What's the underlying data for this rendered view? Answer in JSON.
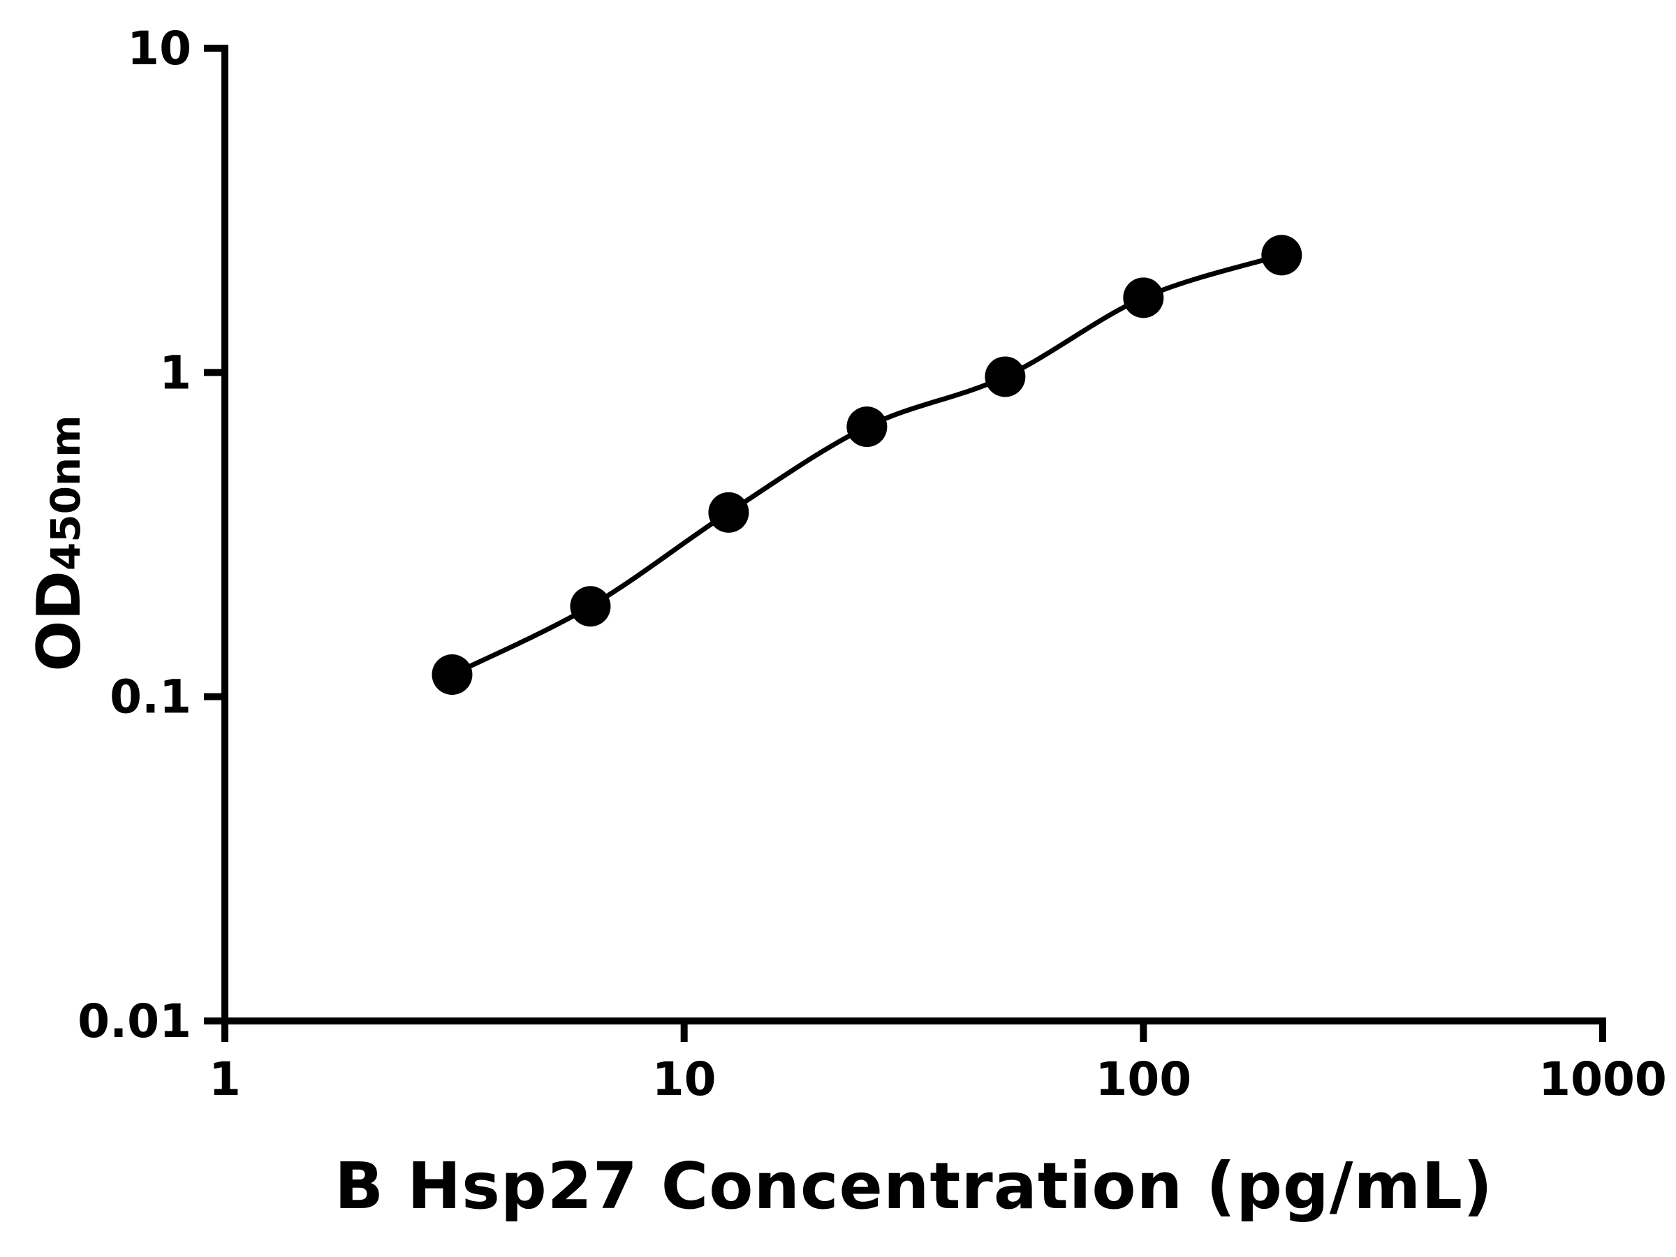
{
  "chart_data": {
    "type": "scatter",
    "title": "",
    "xlabel": "B Hsp27 Concentration (pg/mL)",
    "ylabel_main": "OD",
    "ylabel_sub": "450nm",
    "x": [
      3.125,
      6.25,
      12.5,
      25,
      50,
      100,
      200
    ],
    "y": [
      0.117,
      0.19,
      0.37,
      0.68,
      0.97,
      1.7,
      2.3
    ],
    "xscale": "log",
    "yscale": "log",
    "xlim": [
      1,
      1000
    ],
    "ylim": [
      0.01,
      10
    ],
    "xticks": [
      1,
      10,
      100,
      1000
    ],
    "xtick_labels": [
      "1",
      "10",
      "100",
      "1000"
    ],
    "yticks": [
      0.01,
      0.1,
      1,
      10
    ],
    "ytick_labels": [
      "0.01",
      "0.1",
      "1",
      "10"
    ],
    "grid": "off",
    "legend": "none",
    "marker_color": "#000000",
    "line_color": "#000000",
    "axis_color": "#000000",
    "background": "#ffffff"
  }
}
